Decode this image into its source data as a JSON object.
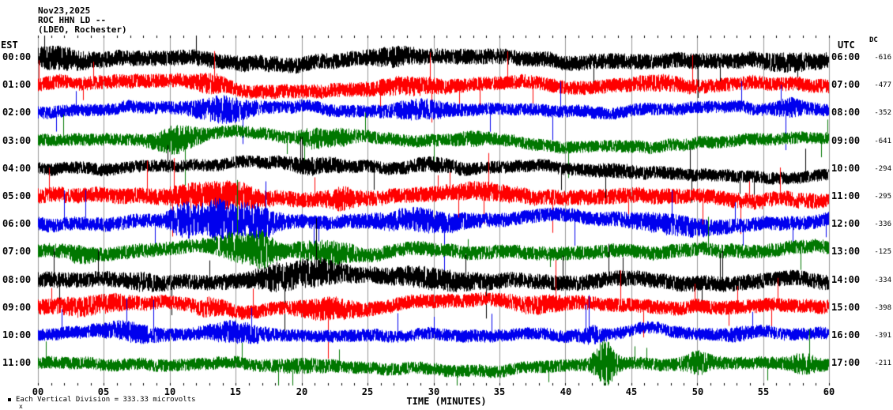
{
  "header": {
    "date": "Nov23,2025",
    "station": "ROC HHN LD --",
    "location": "(LDEO, Rochester)"
  },
  "axes": {
    "left_tz": "EST",
    "right_tz": "UTC",
    "dc_label": "DC",
    "xlabel": "TIME (MINUTES)",
    "xticks": [
      "00",
      "05",
      "10",
      "15",
      "20",
      "25",
      "30",
      "35",
      "40",
      "45",
      "50",
      "55",
      "60"
    ]
  },
  "footer": {
    "scale_note": "Each Vertical Division =  333.33 microvolts",
    "corner_mark": "x"
  },
  "colors": {
    "background": "#ffffff",
    "grid": "#999999",
    "text": "#000000",
    "trace_black": "#000000",
    "trace_red": "#ff0000",
    "trace_blue": "#0000ee",
    "trace_green": "#007700"
  },
  "chart_data": {
    "type": "line",
    "kind": "seismogram-helicorder",
    "x_range_minutes": [
      0,
      60
    ],
    "minutes_per_line": 60,
    "grid_interval_minutes": 5,
    "vertical_division_microvolts": 333.33,
    "rows": [
      {
        "est": "00:00",
        "utc": "06:00",
        "dc": "-616",
        "color": "#000000",
        "amp": 10,
        "bursts": [
          [
            1.5,
            2,
            1.6
          ],
          [
            27,
            1.5,
            1.4
          ],
          [
            57,
            2,
            1.3
          ]
        ]
      },
      {
        "est": "01:00",
        "utc": "07:00",
        "dc": "-477",
        "color": "#ff0000",
        "amp": 9,
        "bursts": [
          [
            13,
            1,
            1.6
          ],
          [
            28,
            2.5,
            1.4
          ],
          [
            47,
            2,
            1.25
          ]
        ]
      },
      {
        "est": "02:00",
        "utc": "08:00",
        "dc": "-352",
        "color": "#0000ee",
        "amp": 8,
        "bursts": [
          [
            14,
            2,
            2.3
          ],
          [
            29,
            2,
            1.8
          ],
          [
            57,
            1,
            1.7
          ]
        ]
      },
      {
        "est": "03:00",
        "utc": "09:00",
        "dc": "-641",
        "color": "#007700",
        "amp": 8,
        "bursts": [
          [
            10.5,
            1.5,
            2.4
          ],
          [
            21,
            1,
            1.8
          ],
          [
            23,
            1,
            1.5
          ],
          [
            33,
            1,
            1.3
          ]
        ]
      },
      {
        "est": "04:00",
        "utc": "10:00",
        "dc": "-294",
        "color": "#000000",
        "amp": 8,
        "bursts": [
          [
            21,
            2,
            1.5
          ],
          [
            30,
            2,
            1.3
          ],
          [
            44,
            2,
            1.2
          ]
        ]
      },
      {
        "est": "05:00",
        "utc": "11:00",
        "dc": "-295",
        "color": "#ff0000",
        "amp": 10,
        "bursts": [
          [
            12,
            2,
            1.7
          ],
          [
            15,
            1.5,
            1.9
          ],
          [
            23,
            1,
            1.6
          ],
          [
            34,
            2,
            1.25
          ]
        ]
      },
      {
        "est": "06:00",
        "utc": "12:00",
        "dc": "-336",
        "color": "#0000ee",
        "amp": 9,
        "bursts": [
          [
            11,
            1,
            2.6
          ],
          [
            13.5,
            1.5,
            3.0
          ],
          [
            16.5,
            1.5,
            2.7
          ],
          [
            29,
            3,
            1.8
          ],
          [
            48,
            3,
            1.6
          ]
        ]
      },
      {
        "est": "07:00",
        "utc": "13:00",
        "dc": "-125",
        "color": "#007700",
        "amp": 9,
        "bursts": [
          [
            3,
            1,
            1.4
          ],
          [
            15,
            1.5,
            2.2
          ],
          [
            17,
            1,
            2.6
          ],
          [
            22,
            2,
            1.8
          ]
        ]
      },
      {
        "est": "08:00",
        "utc": "14:00",
        "dc": "-334",
        "color": "#000000",
        "amp": 10,
        "bursts": [
          [
            8,
            1,
            1.3
          ],
          [
            18,
            1.5,
            1.8
          ],
          [
            21,
            2,
            1.9
          ],
          [
            30,
            3,
            1.5
          ]
        ]
      },
      {
        "est": "09:00",
        "utc": "15:00",
        "dc": "-398",
        "color": "#ff0000",
        "amp": 9,
        "bursts": [
          [
            4,
            3,
            1.5
          ],
          [
            13,
            1,
            1.5
          ],
          [
            22,
            2,
            1.7
          ],
          [
            38,
            2,
            1.4
          ]
        ]
      },
      {
        "est": "10:00",
        "utc": "16:00",
        "dc": "-391",
        "color": "#0000ee",
        "amp": 8,
        "bursts": [
          [
            7,
            2,
            1.7
          ],
          [
            15,
            2,
            1.9
          ],
          [
            42,
            0.8,
            1.6
          ],
          [
            53,
            1,
            1.3
          ]
        ]
      },
      {
        "est": "11:00",
        "utc": "17:00",
        "dc": "-211",
        "color": "#007700",
        "amp": 8,
        "bursts": [
          [
            20,
            2,
            1.3
          ],
          [
            43,
            0.8,
            3.8
          ],
          [
            50,
            1,
            2.0
          ],
          [
            58,
            1,
            1.8
          ]
        ]
      }
    ]
  }
}
